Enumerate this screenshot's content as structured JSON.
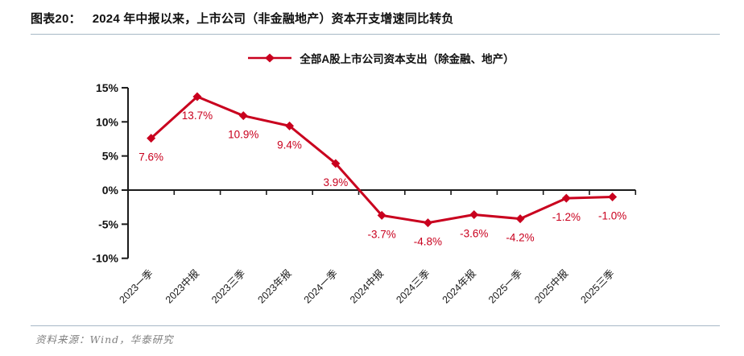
{
  "figure": {
    "id_label": "图表20：",
    "title": "2024 年中报以来，上市公司（非金融地产）资本开支增速同比转负"
  },
  "legend": {
    "label": "全部A股上市公司资本支出（除金融、地产）"
  },
  "source": {
    "text": "资料来源：Wind，华泰研究"
  },
  "colors": {
    "series_red": "#C9001E",
    "axis_black": "#1A1A1A",
    "divider_gray": "#A7B8C6",
    "source_gray": "#808080"
  },
  "chart_data": {
    "type": "line",
    "categories": [
      "2023一季",
      "2023中报",
      "2023三季",
      "2023年报",
      "2024一季",
      "2024中报",
      "2024三季",
      "2024年报",
      "2025一季",
      "2025中报",
      "2025三季"
    ],
    "series": [
      {
        "name": "全部A股上市公司资本支出（除金融、地产）",
        "values": [
          7.6,
          13.7,
          10.9,
          9.4,
          3.9,
          -3.7,
          -4.8,
          -3.6,
          -4.2,
          -1.2,
          -1.0
        ]
      }
    ],
    "point_labels": [
      "7.6%",
      "13.7%",
      "10.9%",
      "9.4%",
      "3.9%",
      "-3.7%",
      "-4.8%",
      "-3.6%",
      "-4.2%",
      "-1.2%",
      "-1.0%"
    ],
    "title": "",
    "xlabel": "",
    "ylabel": "",
    "ylim": [
      -10,
      15
    ],
    "yticks": [
      15,
      10,
      5,
      0,
      -5,
      -10
    ],
    "ytick_labels": [
      "15%",
      "10%",
      "5%",
      "0%",
      "-5%",
      "-10%"
    ],
    "grid": false,
    "legend_position": "top",
    "marker": "diamond"
  }
}
